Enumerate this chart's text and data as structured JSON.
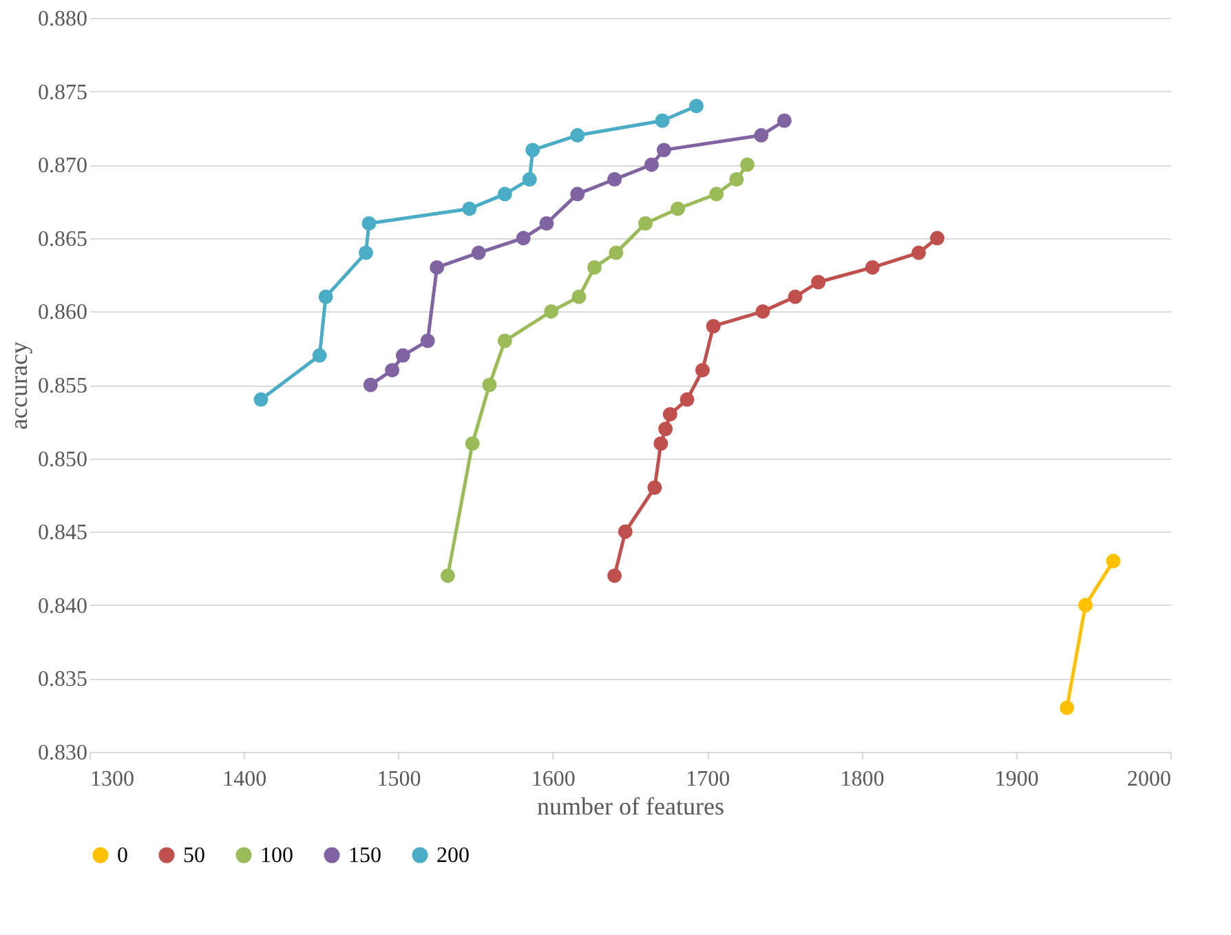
{
  "chart_data": {
    "type": "line",
    "xlabel": "number of features",
    "ylabel": "accuracy",
    "xlim": [
      1300,
      2000
    ],
    "xticks": [
      1300,
      1400,
      1500,
      1600,
      1700,
      1800,
      1900,
      2000
    ],
    "ylim": [
      0.83,
      0.88
    ],
    "yticks": [
      {
        "value": 0.83,
        "label": "0.830"
      },
      {
        "value": 0.835,
        "label": "0.835"
      },
      {
        "value": 0.84,
        "label": "0.840"
      },
      {
        "value": 0.845,
        "label": "0.845"
      },
      {
        "value": 0.85,
        "label": "0.850"
      },
      {
        "value": 0.855,
        "label": "0.855"
      },
      {
        "value": 0.86,
        "label": "0.860"
      },
      {
        "value": 0.865,
        "label": "0.865"
      },
      {
        "value": 0.87,
        "label": "0.870"
      },
      {
        "value": 0.875,
        "label": "0.875"
      },
      {
        "value": 0.88,
        "label": "0.880"
      }
    ],
    "grid": "y",
    "legend": "bottom",
    "marker": "circle",
    "line_style": "solid",
    "series": [
      {
        "name": "0",
        "color": "#ffc000",
        "x": [
          1933,
          1945,
          1963
        ],
        "values": [
          0.833,
          0.84,
          0.843
        ]
      },
      {
        "name": "50",
        "color": "#c0504d",
        "x": [
          1640,
          1647,
          1666,
          1670,
          1673,
          1676,
          1687,
          1697,
          1704,
          1736,
          1757,
          1772,
          1807,
          1837,
          1849
        ],
        "values": [
          0.842,
          0.845,
          0.848,
          0.851,
          0.852,
          0.853,
          0.854,
          0.856,
          0.859,
          0.86,
          0.861,
          0.862,
          0.863,
          0.864,
          0.865
        ]
      },
      {
        "name": "100",
        "color": "#9bbb59",
        "x": [
          1532,
          1548,
          1559,
          1569,
          1599,
          1617,
          1627,
          1641,
          1660,
          1681,
          1706,
          1719,
          1726
        ],
        "values": [
          0.842,
          0.851,
          0.855,
          0.858,
          0.86,
          0.861,
          0.863,
          0.864,
          0.866,
          0.867,
          0.868,
          0.869,
          0.87
        ]
      },
      {
        "name": "150",
        "color": "#8064a2",
        "x": [
          1482,
          1496,
          1503,
          1519,
          1525,
          1552,
          1581,
          1596,
          1616,
          1640,
          1664,
          1672,
          1735,
          1750
        ],
        "values": [
          0.855,
          0.856,
          0.857,
          0.858,
          0.863,
          0.864,
          0.865,
          0.866,
          0.868,
          0.869,
          0.87,
          0.871,
          0.872,
          0.873
        ]
      },
      {
        "name": "200",
        "color": "#4bacc6",
        "x": [
          1411,
          1449,
          1453,
          1479,
          1481,
          1546,
          1569,
          1585,
          1587,
          1616,
          1671,
          1693
        ],
        "values": [
          0.854,
          0.857,
          0.861,
          0.864,
          0.866,
          0.867,
          0.868,
          0.869,
          0.871,
          0.872,
          0.873,
          0.874
        ]
      }
    ]
  }
}
